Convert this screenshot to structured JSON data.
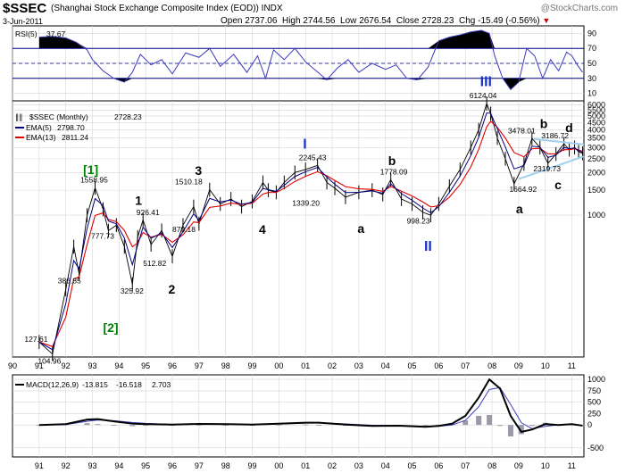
{
  "header": {
    "symbol": "$SSEC",
    "description": "(Shanghai Stock Exchange Composite Index (EOD))  INDX",
    "date": "3-Jun-2011",
    "open_label": "Open",
    "open": "2737.06",
    "high_label": "High",
    "high": "2744.56",
    "low_label": "Low",
    "low": "2676.54",
    "close_label": "Close",
    "close": "2728.23",
    "chg_label": "Chg",
    "chg": "-15.49 (-0.56%)",
    "watermark": "@StockCharts.com"
  },
  "colors": {
    "rsi_line": "#3b3bbf",
    "rsi_fill": "#000000",
    "price": "#000000",
    "ema5": "#000080",
    "ema13": "#e00000",
    "trendline": "#9fd0ef",
    "macd": "#000000",
    "signal": "#4040c0",
    "hist": "#9a9aa8",
    "wave_green": "#008000",
    "wave_blue": "#1a33cc",
    "grid": "#d6d6d6"
  },
  "chart_data": [
    {
      "type": "line",
      "panel": "rsi",
      "title": "RSI(5)",
      "title_value": "37.67",
      "yticks": [
        10,
        30,
        50,
        70,
        90
      ],
      "ylim": [
        0,
        100
      ],
      "reference_lines": [
        30,
        50,
        70
      ],
      "x": [
        1991.0,
        1991.5,
        1992.0,
        1992.4,
        1992.8,
        1993.0,
        1993.4,
        1993.8,
        1994.2,
        1994.5,
        1994.8,
        1995.2,
        1995.6,
        1996.0,
        1996.5,
        1997.0,
        1997.4,
        1997.8,
        1998.3,
        1998.8,
        1999.2,
        1999.5,
        1999.8,
        2000.2,
        2000.6,
        2001.0,
        2001.4,
        2001.8,
        2002.2,
        2002.6,
        2003.0,
        2003.5,
        2004.0,
        2004.4,
        2004.8,
        2005.2,
        2005.6,
        2006.0,
        2006.4,
        2006.8,
        2007.2,
        2007.6,
        2007.9,
        2008.1,
        2008.4,
        2008.7,
        2009.0,
        2009.3,
        2009.6,
        2009.9,
        2010.2,
        2010.5,
        2010.8,
        2011.0,
        2011.2,
        2011.4
      ],
      "values": [
        85,
        86,
        84,
        78,
        68,
        55,
        40,
        30,
        25,
        38,
        62,
        48,
        55,
        36,
        64,
        58,
        70,
        46,
        62,
        38,
        60,
        30,
        68,
        55,
        70,
        52,
        40,
        28,
        44,
        55,
        38,
        50,
        42,
        48,
        30,
        28,
        45,
        80,
        85,
        88,
        92,
        94,
        90,
        60,
        30,
        15,
        25,
        70,
        60,
        30,
        55,
        40,
        65,
        60,
        48,
        38
      ]
    },
    {
      "type": "line",
      "panel": "price",
      "title": "$SSEC (Monthly)",
      "title_value": "2728.23",
      "yticks": [
        1000,
        1500,
        2000,
        2500,
        3000,
        3500,
        4000,
        4500,
        5000,
        5500,
        6000
      ],
      "ylim": [
        100,
        6400
      ],
      "log_scale": true,
      "xticks": [
        "90",
        "91",
        "92",
        "93",
        "94",
        "95",
        "96",
        "97",
        "98",
        "99",
        "00",
        "01",
        "02",
        "03",
        "04",
        "05",
        "06",
        "07",
        "08",
        "09",
        "10",
        "11"
      ],
      "x": [
        1991.0,
        1991.5,
        1992.0,
        1992.3,
        1992.5,
        1992.8,
        1993.1,
        1993.4,
        1993.6,
        1993.9,
        1994.2,
        1994.5,
        1994.7,
        1994.9,
        1995.2,
        1995.6,
        1996.0,
        1996.4,
        1996.8,
        1997.0,
        1997.4,
        1997.8,
        1998.2,
        1998.6,
        1999.0,
        1999.4,
        1999.6,
        1999.9,
        2000.2,
        2000.6,
        2001.0,
        2001.45,
        2001.8,
        2002.1,
        2002.5,
        2003.0,
        2003.5,
        2003.9,
        2004.2,
        2004.6,
        2005.0,
        2005.4,
        2005.7,
        2006.0,
        2006.4,
        2006.8,
        2007.2,
        2007.5,
        2007.8,
        2007.95,
        2008.2,
        2008.5,
        2008.83,
        2009.2,
        2009.5,
        2009.8,
        2010.1,
        2010.4,
        2010.7,
        2010.9,
        2011.1,
        2011.25,
        2011.4
      ],
      "values": [
        127.61,
        104.96,
        300,
        600,
        386.85,
        1000,
        1558.95,
        1100,
        777.73,
        850,
        600,
        325.92,
        700,
        926.41,
        620,
        780,
        512.82,
        850,
        1150,
        870.18,
        1510.18,
        1200,
        1300,
        1150,
        1250,
        1700,
        1500,
        1450,
        1700,
        2000,
        2100,
        2245.43,
        1700,
        1550,
        1339.2,
        1450,
        1500,
        1400,
        1778.09,
        1300,
        1200,
        1050,
        998.23,
        1200,
        1600,
        2100,
        3000,
        4000,
        6124.04,
        5200,
        3500,
        2500,
        1664.92,
        2300,
        3478.01,
        3000,
        2319.73,
        2700,
        3186.72,
        2900,
        3000,
        2800,
        2728.23
      ],
      "series": [
        {
          "name": "EMA(5)",
          "value_label": "2798.70"
        },
        {
          "name": "EMA(13)",
          "value_label": "2811.24"
        }
      ],
      "annotations": {
        "prices": [
          "127.61",
          "104.96",
          "1558.95",
          "386.85",
          "777.73",
          "926.41",
          "325.92",
          "512.82",
          "870.18",
          "1510.18",
          "2245.43",
          "1339.20",
          "1778.09",
          "998.23",
          "6124.04",
          "1664.92",
          "3478.01",
          "2319.73",
          "3186.72"
        ],
        "waves": [
          "[1]",
          "[2]",
          "1",
          "2",
          "3",
          "4",
          "I",
          "a",
          "b",
          "II",
          "III",
          "a",
          "b",
          "c",
          "d"
        ]
      }
    },
    {
      "type": "line",
      "panel": "macd",
      "title": "MACD(12,26,9)",
      "title_values": [
        "-13.815",
        "-16.518",
        "2.703"
      ],
      "yticks": [
        -500,
        0,
        250,
        500,
        750,
        1000
      ],
      "ylim": [
        -700,
        1100
      ],
      "xticks": [
        "91",
        "92",
        "93",
        "94",
        "95",
        "96",
        "97",
        "98",
        "99",
        "00",
        "01",
        "02",
        "03",
        "04",
        "05",
        "06",
        "07",
        "08",
        "09",
        "10",
        "11"
      ],
      "x": [
        1991.0,
        1992.0,
        1992.8,
        1993.2,
        1993.8,
        1994.5,
        1995.0,
        1996.0,
        1997.0,
        1998.0,
        1999.0,
        2000.0,
        2001.0,
        2001.5,
        2002.5,
        2003.5,
        2004.5,
        2005.5,
        2006.0,
        2006.5,
        2007.0,
        2007.5,
        2007.9,
        2008.3,
        2008.7,
        2009.1,
        2009.5,
        2010.0,
        2010.5,
        2011.0,
        2011.4
      ],
      "macd": [
        0,
        20,
        120,
        130,
        80,
        30,
        20,
        10,
        25,
        20,
        10,
        30,
        50,
        50,
        10,
        -20,
        -15,
        -40,
        -20,
        30,
        200,
        600,
        1000,
        800,
        200,
        -150,
        -100,
        20,
        0,
        20,
        -14
      ],
      "signal": [
        0,
        10,
        80,
        110,
        95,
        55,
        35,
        15,
        20,
        20,
        15,
        25,
        40,
        48,
        25,
        -5,
        -12,
        -30,
        -28,
        0,
        100,
        400,
        780,
        820,
        450,
        50,
        -80,
        -30,
        5,
        10,
        -17
      ]
    }
  ]
}
